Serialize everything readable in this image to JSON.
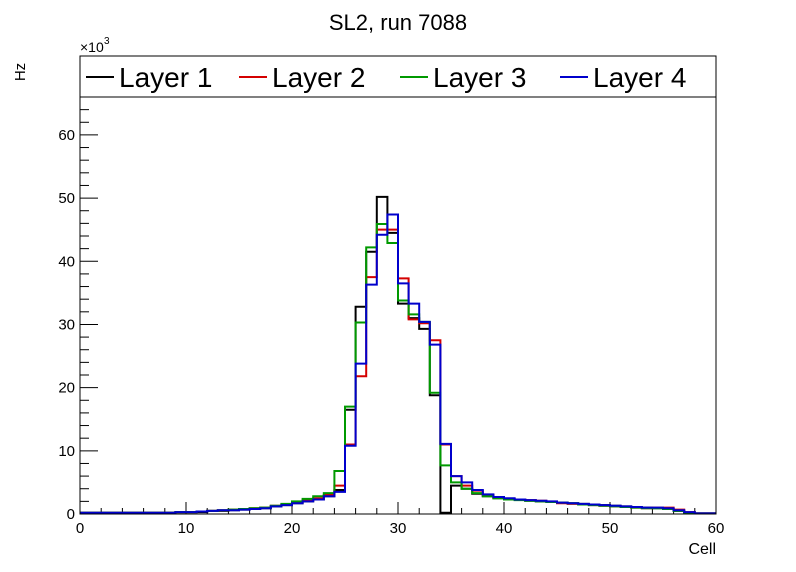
{
  "chart_data": {
    "type": "histogram",
    "title": "SL2, run 7088",
    "xlabel": "Cell",
    "ylabel": "Hz",
    "y_multiplier_label": "×10",
    "y_multiplier_exp": "3",
    "xlim": [
      0,
      60
    ],
    "ylim": [
      0,
      66
    ],
    "x_ticks": [
      0,
      10,
      20,
      30,
      40,
      50,
      60
    ],
    "y_ticks": [
      0,
      10,
      20,
      30,
      40,
      50,
      60
    ],
    "bin_edges_start": 0,
    "bin_width": 1,
    "legend_position": "top",
    "series": [
      {
        "name": "Layer 1",
        "color": "#000000",
        "values": [
          0.2,
          0.2,
          0.2,
          0.2,
          0.2,
          0.2,
          0.2,
          0.2,
          0.2,
          0.3,
          0.3,
          0.3,
          0.5,
          0.5,
          0.6,
          0.7,
          0.8,
          0.9,
          1.2,
          1.4,
          1.7,
          2.0,
          2.3,
          2.8,
          3.8,
          16.5,
          32.8,
          41.5,
          50.2,
          44.5,
          33.3,
          31.0,
          29.3,
          18.8,
          0.2,
          4.5,
          4.0,
          3.2,
          2.8,
          2.5,
          2.4,
          2.3,
          2.1,
          2.0,
          1.9,
          1.8,
          1.7,
          1.6,
          1.5,
          1.4,
          1.3,
          1.2,
          1.1,
          1.0,
          0.9,
          0.8,
          0.5,
          0.2,
          0.1,
          0.1
        ]
      },
      {
        "name": "Layer 2",
        "color": "#d40000",
        "values": [
          0.2,
          0.2,
          0.2,
          0.2,
          0.2,
          0.2,
          0.2,
          0.2,
          0.2,
          0.3,
          0.3,
          0.4,
          0.5,
          0.6,
          0.7,
          0.8,
          0.9,
          1.0,
          1.3,
          1.5,
          1.8,
          2.2,
          2.5,
          3.0,
          4.5,
          11.0,
          21.8,
          37.5,
          45.0,
          45.0,
          37.3,
          30.8,
          30.2,
          27.5,
          11.0,
          6.0,
          4.5,
          3.7,
          3.0,
          2.6,
          2.4,
          2.3,
          2.2,
          2.1,
          1.9,
          1.7,
          1.6,
          1.5,
          1.4,
          1.3,
          1.2,
          1.1,
          1.0,
          0.9,
          1.0,
          1.0,
          0.7,
          0.3,
          0.1,
          0.1
        ]
      },
      {
        "name": "Layer 3",
        "color": "#009900",
        "values": [
          0.2,
          0.2,
          0.2,
          0.2,
          0.2,
          0.2,
          0.2,
          0.2,
          0.2,
          0.3,
          0.3,
          0.4,
          0.5,
          0.6,
          0.7,
          0.8,
          0.9,
          1.0,
          1.3,
          1.6,
          2.0,
          2.4,
          2.8,
          3.3,
          6.8,
          17.0,
          30.3,
          42.2,
          45.9,
          42.9,
          33.8,
          31.6,
          30.4,
          19.2,
          7.7,
          5.0,
          4.0,
          3.3,
          2.8,
          2.5,
          2.3,
          2.2,
          2.1,
          2.0,
          1.9,
          1.8,
          1.7,
          1.5,
          1.4,
          1.3,
          1.2,
          1.1,
          1.0,
          0.9,
          0.9,
          0.8,
          0.5,
          0.2,
          0.1,
          0.1
        ]
      },
      {
        "name": "Layer 4",
        "color": "#0000cc",
        "values": [
          0.2,
          0.2,
          0.2,
          0.2,
          0.2,
          0.2,
          0.2,
          0.2,
          0.2,
          0.3,
          0.3,
          0.4,
          0.5,
          0.6,
          0.6,
          0.7,
          0.8,
          0.9,
          1.2,
          1.4,
          1.7,
          2.0,
          2.3,
          2.8,
          3.5,
          10.8,
          23.8,
          36.3,
          44.2,
          47.4,
          36.5,
          33.3,
          30.4,
          26.8,
          11.1,
          6.0,
          5.0,
          3.8,
          3.1,
          2.7,
          2.5,
          2.3,
          2.2,
          2.1,
          2.0,
          1.8,
          1.7,
          1.6,
          1.5,
          1.4,
          1.3,
          1.2,
          1.1,
          1.0,
          1.0,
          0.9,
          0.6,
          0.3,
          0.1,
          0.1
        ]
      }
    ]
  }
}
